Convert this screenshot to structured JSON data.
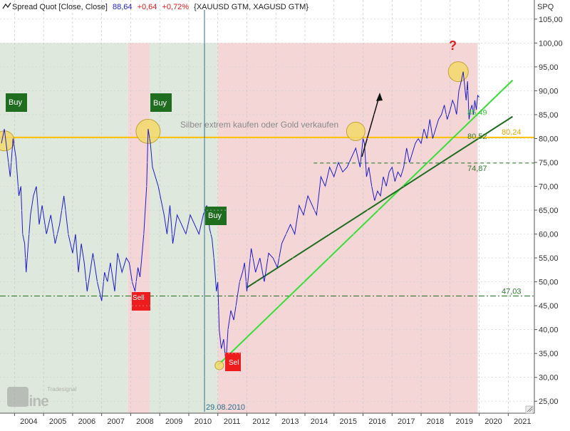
{
  "header": {
    "icon": "line-chart-icon",
    "instrument": "Spread Quot [Close, Close]",
    "last": "88,64",
    "change": "+0,64",
    "change_pct": "+0,72%",
    "components": "{XAUUSD GTM, XAGUSD GTM}",
    "axis_label": "SPQ"
  },
  "watermark": {
    "brand": "Tradesignal",
    "word": "online"
  },
  "colors": {
    "price": "#1c1ccc",
    "green_zone": "#dfe8dc",
    "red_zone": "#f4d6d6",
    "gold_line": "#ffc000",
    "trend_light": "#33e033",
    "trend_dark": "#1e6e1e",
    "buy": "#1f6e1f",
    "sell": "#ee1c1c",
    "circle": "#f5da6a"
  },
  "chart_data": {
    "type": "line",
    "title": "",
    "xlabel": "",
    "ylabel": "SPQ",
    "xlim": [
      2003.5,
      2021.9
    ],
    "ylim": [
      22.5,
      109.0
    ],
    "x_ticks": [
      "2004",
      "2005",
      "2006",
      "2007",
      "2008",
      "2009",
      "2010",
      "2011",
      "2012",
      "2013",
      "2014",
      "2015",
      "2016",
      "2017",
      "2018",
      "2019",
      "2020",
      "2021"
    ],
    "y_ticks": [
      "25,00",
      "30,00",
      "35,00",
      "40,00",
      "45,00",
      "50,00",
      "55,00",
      "60,00",
      "65,00",
      "70,00",
      "75,00",
      "80,00",
      "85,00",
      "90,00",
      "95,00",
      "100,00",
      "105,00"
    ],
    "series": [
      {
        "x": [
          2003.55,
          2003.65,
          2003.75,
          2003.85,
          2003.95,
          2004.05,
          2004.15,
          2004.22,
          2004.28,
          2004.35,
          2004.4,
          2004.45,
          2004.55,
          2004.65,
          2004.75,
          2004.85,
          2004.95,
          2005.1,
          2005.25,
          2005.4,
          2005.55,
          2005.7,
          2005.85,
          2006.0,
          2006.1,
          2006.2,
          2006.3,
          2006.4,
          2006.5,
          2006.6,
          2006.7,
          2006.85,
          2007.0,
          2007.1,
          2007.2,
          2007.3,
          2007.45,
          2007.55,
          2007.7,
          2007.85,
          2007.95,
          2008.05,
          2008.15,
          2008.25,
          2008.32,
          2008.38,
          2008.45,
          2008.55,
          2008.6,
          2008.68,
          2008.75,
          2008.85,
          2008.95,
          2009.05,
          2009.15,
          2009.25,
          2009.35,
          2009.45,
          2009.6,
          2009.75,
          2009.9,
          2010.05,
          2010.2,
          2010.35,
          2010.5,
          2010.62,
          2010.72,
          2010.8,
          2010.88,
          2010.95,
          2011.0,
          2011.05,
          2011.12,
          2011.2,
          2011.28,
          2011.35,
          2011.45,
          2011.55,
          2011.65,
          2011.75,
          2011.85,
          2011.92,
          2012.0,
          2012.15,
          2012.3,
          2012.45,
          2012.6,
          2012.75,
          2012.9,
          2013.05,
          2013.2,
          2013.35,
          2013.5,
          2013.65,
          2013.8,
          2013.95,
          2014.1,
          2014.25,
          2014.4,
          2014.55,
          2014.7,
          2014.85,
          2015.0,
          2015.15,
          2015.3,
          2015.45,
          2015.6,
          2015.75,
          2015.9,
          2016.0,
          2016.05,
          2016.12,
          2016.2,
          2016.3,
          2016.4,
          2016.5,
          2016.6,
          2016.7,
          2016.8,
          2016.9,
          2017.0,
          2017.1,
          2017.2,
          2017.3,
          2017.4,
          2017.5,
          2017.6,
          2017.7,
          2017.8,
          2017.9,
          2018.0,
          2018.1,
          2018.2,
          2018.3,
          2018.4,
          2018.5,
          2018.6,
          2018.7,
          2018.8,
          2018.9,
          2019.0,
          2019.08,
          2019.15,
          2019.22,
          2019.3,
          2019.38,
          2019.45,
          2019.5,
          2019.55,
          2019.6,
          2019.65,
          2019.7,
          2019.75,
          2019.8,
          2019.85,
          2019.9,
          2019.95,
          2020.0
        ],
        "y": [
          79,
          82,
          77,
          72,
          80,
          76,
          68,
          70,
          60,
          58,
          52,
          56,
          64,
          68,
          70,
          62,
          66,
          60,
          64,
          58,
          62,
          68,
          60,
          56,
          60,
          52,
          58,
          54,
          48,
          52,
          56,
          50,
          46,
          52,
          50,
          54,
          48,
          56,
          52,
          55,
          54,
          50,
          48,
          53,
          51,
          55,
          60,
          70,
          82,
          79,
          74,
          72,
          70,
          67,
          64,
          60,
          66,
          58,
          64,
          62,
          60,
          64,
          62,
          60,
          64,
          66,
          61,
          59,
          54,
          48,
          50,
          40,
          36,
          38,
          33,
          40,
          44,
          42,
          46,
          50,
          52,
          54,
          48,
          57,
          52,
          55,
          50,
          56,
          55,
          53,
          58,
          60,
          62,
          60,
          66,
          64,
          68,
          66,
          64,
          72,
          70,
          74,
          72,
          75,
          73,
          74,
          76,
          78,
          74,
          80,
          79,
          72,
          74,
          70,
          67,
          69,
          68,
          72,
          70,
          73,
          74,
          71,
          73,
          72,
          74,
          78,
          75,
          77,
          79,
          80,
          79,
          82,
          80,
          84,
          80,
          82,
          84,
          85,
          87,
          84,
          86,
          88,
          87,
          85,
          90,
          92,
          94,
          91,
          88,
          92,
          84,
          86,
          87,
          85,
          88,
          86,
          89,
          88.64
        ]
      }
    ],
    "horizontal_levels": [
      {
        "value": 80.24,
        "label": "80,24",
        "style": "solid gold"
      },
      {
        "value": 74.87,
        "label": "74,87",
        "style": "dashed green"
      },
      {
        "value": 47.03,
        "label": "47,03",
        "style": "dash-dot green"
      }
    ],
    "trend_labels": [
      {
        "value": 85.49,
        "label": "85,49"
      },
      {
        "value": 80.52,
        "label": "80,52"
      }
    ],
    "annotations": {
      "text": "Silber extrem kaufen oder Gold verkaufen",
      "question_mark": "?",
      "vertical_date": "29.08.2010",
      "buy_label": "Buy",
      "sell_label": "Sell",
      "sell_label_2": "Sel"
    }
  }
}
